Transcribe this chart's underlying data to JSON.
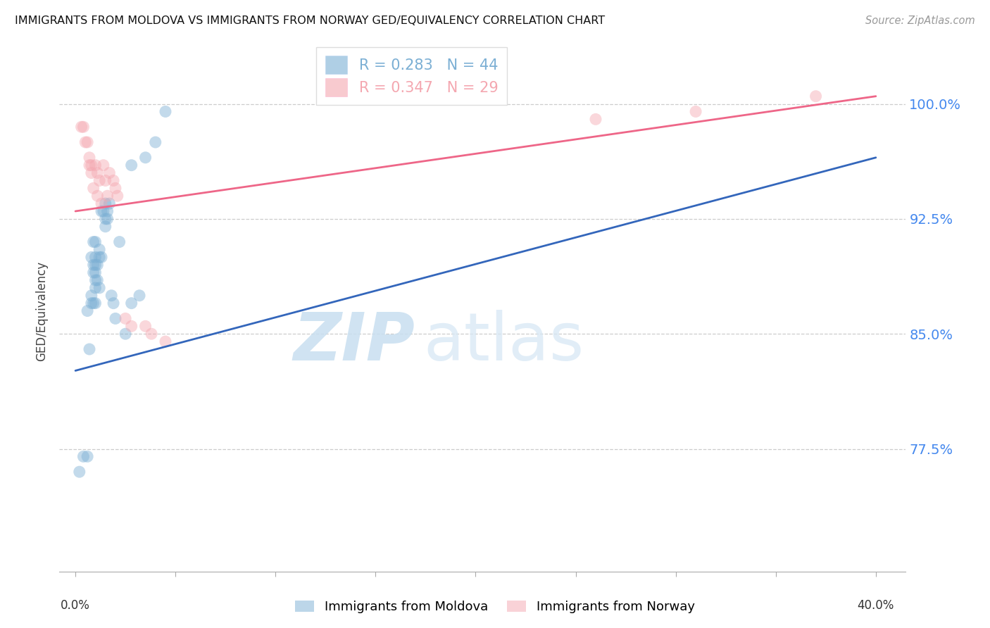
{
  "title": "IMMIGRANTS FROM MOLDOVA VS IMMIGRANTS FROM NORWAY GED/EQUIVALENCY CORRELATION CHART",
  "source": "Source: ZipAtlas.com",
  "ylabel": "GED/Equivalency",
  "yticks": [
    0.775,
    0.85,
    0.925,
    1.0
  ],
  "ytick_labels": [
    "77.5%",
    "85.0%",
    "92.5%",
    "100.0%"
  ],
  "xlim_data": [
    0.0,
    0.4
  ],
  "ylim": [
    0.695,
    1.035
  ],
  "moldova_color": "#7BAFD4",
  "norway_color": "#F4A7B0",
  "moldova_line_color": "#3366BB",
  "norway_line_color": "#EE6688",
  "moldova_label": "Immigrants from Moldova",
  "norway_label": "Immigrants from Norway",
  "R_moldova": 0.283,
  "N_moldova": 44,
  "R_norway": 0.347,
  "N_norway": 29,
  "watermark_zip": "ZIP",
  "watermark_atlas": "atlas",
  "moldova_trendline": [
    0.0,
    0.826,
    0.4,
    0.965
  ],
  "norway_trendline": [
    0.0,
    0.93,
    0.4,
    1.005
  ],
  "moldova_x": [
    0.002,
    0.004,
    0.006,
    0.006,
    0.007,
    0.008,
    0.008,
    0.008,
    0.009,
    0.009,
    0.009,
    0.009,
    0.01,
    0.01,
    0.01,
    0.01,
    0.01,
    0.01,
    0.01,
    0.011,
    0.011,
    0.012,
    0.012,
    0.012,
    0.013,
    0.013,
    0.014,
    0.015,
    0.015,
    0.015,
    0.016,
    0.016,
    0.017,
    0.018,
    0.019,
    0.02,
    0.022,
    0.025,
    0.028,
    0.028,
    0.032,
    0.035,
    0.04,
    0.045
  ],
  "moldova_y": [
    0.76,
    0.77,
    0.77,
    0.865,
    0.84,
    0.87,
    0.875,
    0.9,
    0.87,
    0.89,
    0.895,
    0.91,
    0.87,
    0.88,
    0.885,
    0.89,
    0.895,
    0.9,
    0.91,
    0.885,
    0.895,
    0.88,
    0.9,
    0.905,
    0.9,
    0.93,
    0.93,
    0.92,
    0.925,
    0.935,
    0.925,
    0.93,
    0.935,
    0.875,
    0.87,
    0.86,
    0.91,
    0.85,
    0.87,
    0.96,
    0.875,
    0.965,
    0.975,
    0.995
  ],
  "norway_x": [
    0.003,
    0.004,
    0.005,
    0.006,
    0.007,
    0.007,
    0.008,
    0.008,
    0.009,
    0.01,
    0.011,
    0.011,
    0.012,
    0.013,
    0.014,
    0.015,
    0.016,
    0.017,
    0.019,
    0.02,
    0.021,
    0.025,
    0.028,
    0.035,
    0.038,
    0.045,
    0.26,
    0.31,
    0.37
  ],
  "norway_y": [
    0.985,
    0.985,
    0.975,
    0.975,
    0.96,
    0.965,
    0.955,
    0.96,
    0.945,
    0.96,
    0.94,
    0.955,
    0.95,
    0.935,
    0.96,
    0.95,
    0.94,
    0.955,
    0.95,
    0.945,
    0.94,
    0.86,
    0.855,
    0.855,
    0.85,
    0.845,
    0.99,
    0.995,
    1.005
  ]
}
